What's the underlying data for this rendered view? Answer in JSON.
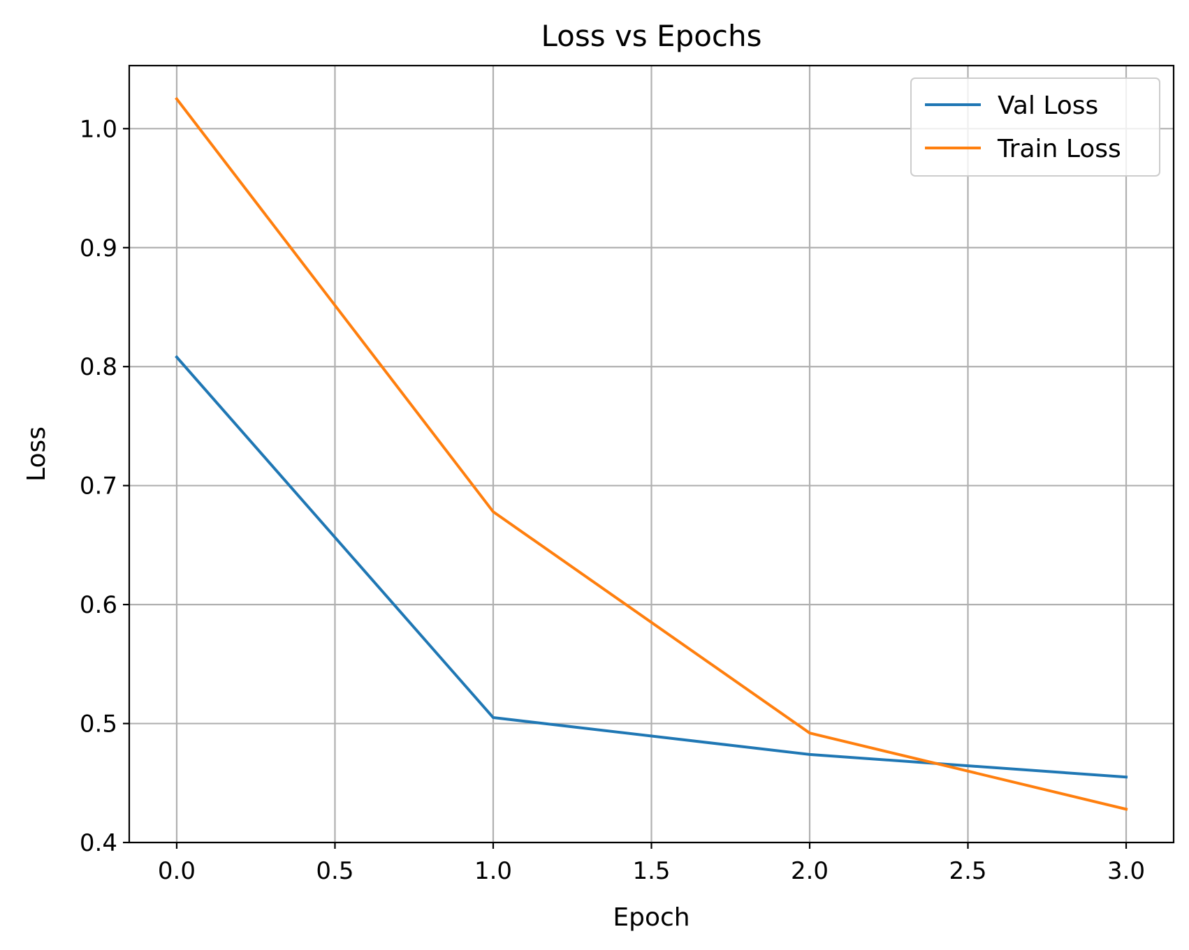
{
  "chart_data": {
    "type": "line",
    "title": "Loss vs Epochs",
    "xlabel": "Epoch",
    "ylabel": "Loss",
    "x": [
      0,
      1,
      2,
      3
    ],
    "series": [
      {
        "name": "Val Loss",
        "color": "#1f77b4",
        "values": [
          0.808,
          0.505,
          0.474,
          0.455
        ]
      },
      {
        "name": "Train Loss",
        "color": "#ff7f0e",
        "values": [
          1.025,
          0.678,
          0.492,
          0.428
        ]
      }
    ],
    "xlim": [
      -0.15,
      3.15
    ],
    "ylim": [
      0.4,
      1.053
    ],
    "xticks": [
      0.0,
      0.5,
      1.0,
      1.5,
      2.0,
      2.5,
      3.0
    ],
    "xtick_labels": [
      "0.0",
      "0.5",
      "1.0",
      "1.5",
      "2.0",
      "2.5",
      "3.0"
    ],
    "yticks": [
      0.4,
      0.5,
      0.6,
      0.7,
      0.8,
      0.9,
      1.0
    ],
    "ytick_labels": [
      "0.4",
      "0.5",
      "0.6",
      "0.7",
      "0.8",
      "0.9",
      "1.0"
    ],
    "grid": true,
    "legend_position": "top-right"
  }
}
